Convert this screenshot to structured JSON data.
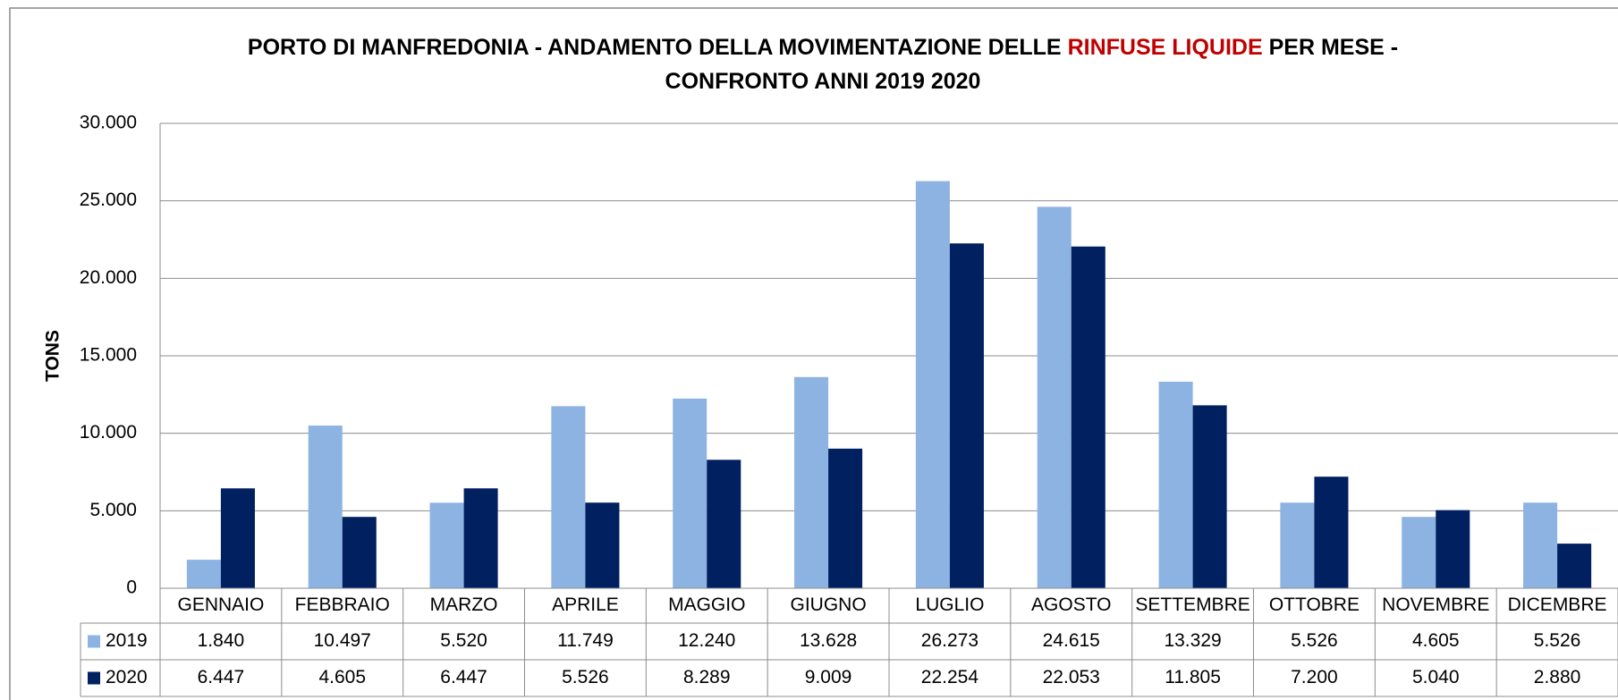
{
  "chart_data": {
    "type": "bar",
    "title": [
      "PORTO DI MANFREDONIA - ANDAMENTO DELLA MOVIMENTAZIONE DELLE",
      "RINFUSE LIQUIDE",
      "PER MESE -",
      "CONFRONTO ANNI 2019 2020"
    ],
    "ylabel": "TONS",
    "categories": [
      "GENNAIO",
      "FEBBRAIO",
      "MARZO",
      "APRILE",
      "MAGGIO",
      "GIUGNO",
      "LUGLIO",
      "AGOSTO",
      "SETTEMBRE",
      "OTTOBRE",
      "NOVEMBRE",
      "DICEMBRE"
    ],
    "series": [
      {
        "name": "2019",
        "color": "#8db3e2",
        "values": [
          1840,
          10497,
          5520,
          11749,
          12240,
          13628,
          26273,
          24615,
          13329,
          5526,
          4605,
          5526
        ],
        "value_labels": [
          "1.840",
          "10.497",
          "5.520",
          "11.749",
          "12.240",
          "13.628",
          "26.273",
          "24.615",
          "13.329",
          "5.526",
          "4.605",
          "5.526"
        ]
      },
      {
        "name": "2020",
        "color": "#002060",
        "values": [
          6447,
          4605,
          6447,
          5526,
          8289,
          9009,
          22254,
          22053,
          11805,
          7200,
          5040,
          2880
        ],
        "value_labels": [
          "6.447",
          "4.605",
          "6.447",
          "5.526",
          "8.289",
          "9.009",
          "22.254",
          "22.053",
          "11.805",
          "7.200",
          "5.040",
          "2.880"
        ]
      }
    ],
    "ylim": [
      0,
      30000
    ],
    "yticks": [
      0,
      {
        "value": 5000,
        "label": "5.000"
      },
      {
        "value": 10000,
        "label": "10.000"
      },
      {
        "value": 15000,
        "label": "15.000"
      },
      {
        "value": 20000,
        "label": "20.000"
      },
      {
        "value": 25000,
        "label": "25.000"
      },
      {
        "value": 30000,
        "label": "30.000"
      }
    ],
    "grid": true
  }
}
